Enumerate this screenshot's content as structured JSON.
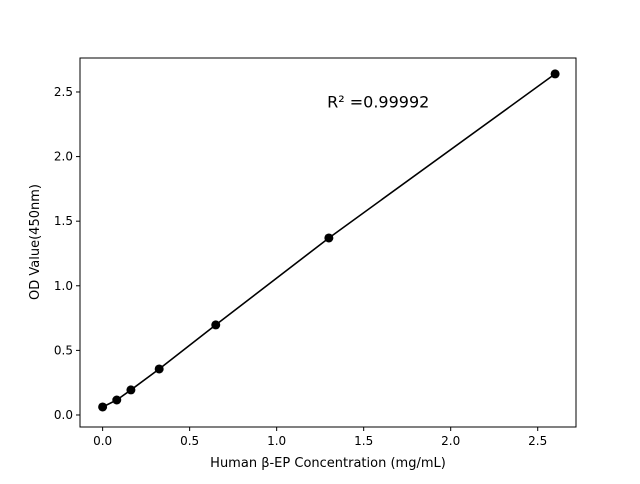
{
  "chart_data": {
    "type": "line",
    "title": "",
    "xlabel": "Human β-EP Concentration (mg/mL)",
    "ylabel": "OD Value(450nm)",
    "xlim": [
      -0.13,
      2.72
    ],
    "ylim": [
      -0.093,
      2.763
    ],
    "xticks": [
      0.0,
      0.5,
      1.0,
      1.5,
      2.0,
      2.5
    ],
    "xtick_labels": [
      "0.0",
      "0.5",
      "1.0",
      "1.5",
      "2.0",
      "2.5"
    ],
    "yticks": [
      0.0,
      0.5,
      1.0,
      1.5,
      2.0,
      2.5
    ],
    "ytick_labels": [
      "0.0",
      "0.5",
      "1.0",
      "1.5",
      "2.0",
      "2.5"
    ],
    "grid": false,
    "annotation": {
      "text": "R² =0.99992",
      "x": 1.29,
      "y": 2.38
    },
    "series": [
      {
        "x": [
          0,
          0.08125,
          0.1625,
          0.325,
          0.65,
          1.3,
          2.6
        ],
        "y": [
          0.062,
          0.116,
          0.194,
          0.356,
          0.697,
          1.37,
          2.64
        ],
        "color": "#000000",
        "marker": "circle"
      }
    ]
  }
}
